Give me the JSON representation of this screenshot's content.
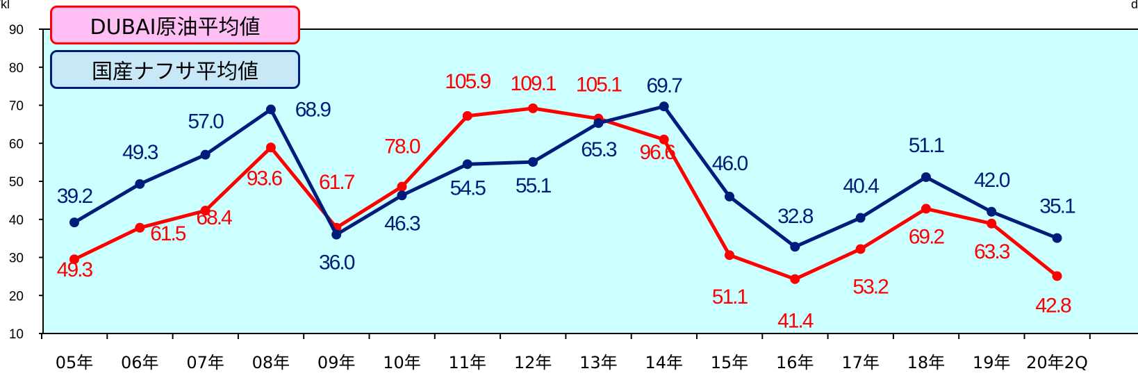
{
  "chart_data": {
    "type": "line",
    "title": "",
    "xlabel": "",
    "ylabel": "",
    "y_unit_left": "d/kl",
    "y_unit_right": "d",
    "ylim": [
      10,
      90
    ],
    "yticks": [
      "10",
      "20",
      "30",
      "40",
      "50",
      "60",
      "70",
      "80",
      "90"
    ],
    "categories": [
      "05年",
      "06年",
      "07年",
      "08年",
      "09年",
      "10年",
      "11年",
      "12年",
      "13年",
      "14年",
      "15年",
      "16年",
      "17年",
      "18年",
      "19年",
      "20年2Q"
    ],
    "grid": false,
    "background_color": "#ccffff",
    "series": [
      {
        "name": "DUBAI原油平均値",
        "color": "#ff0000",
        "values": [
          29.5,
          37.8,
          42.3,
          58.9,
          37.8,
          48.6,
          67.2,
          69.2,
          66.5,
          61.0,
          30.6,
          24.3,
          32.2,
          42.8,
          38.9,
          25.1
        ],
        "labels": [
          "49.3",
          "61.5",
          "68.4",
          "93.6",
          "61.7",
          "78.0",
          "105.9",
          "109.1",
          "105.1",
          "96.6",
          "51.1",
          "41.4",
          "53.2",
          "69.2",
          "63.3",
          "42.8"
        ]
      },
      {
        "name": "国産ナフサ平均値",
        "color": "#001c7a",
        "values": [
          39.2,
          49.3,
          57.0,
          68.9,
          36.0,
          46.3,
          54.5,
          55.1,
          65.3,
          69.7,
          46.0,
          32.8,
          40.4,
          51.1,
          42.0,
          35.1
        ],
        "labels": [
          "39.2",
          "49.3",
          "57.0",
          "68.9",
          "36.0",
          "46.3",
          "54.5",
          "55.1",
          "65.3",
          "69.7",
          "46.0",
          "32.8",
          "40.4",
          "51.1",
          "42.0",
          "35.1"
        ]
      }
    ]
  }
}
